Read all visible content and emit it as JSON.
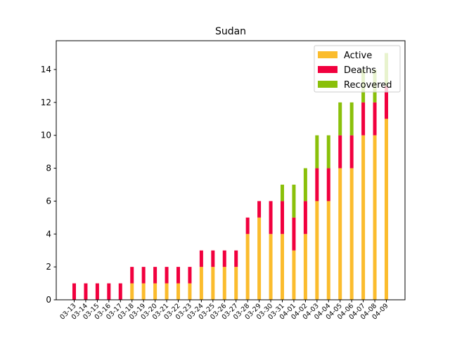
{
  "chart_data": {
    "type": "bar",
    "stacked": true,
    "title": "Sudan",
    "xlabel": "",
    "ylabel": "",
    "ylim": [
      0,
      15.75
    ],
    "yticks": [
      "0",
      "2",
      "4",
      "6",
      "8",
      "10",
      "12",
      "14"
    ],
    "grid": false,
    "legend_position": "top-right",
    "categories": [
      "03-13",
      "03-14",
      "03-15",
      "03-16",
      "03-17",
      "03-18",
      "03-19",
      "03-20",
      "03-21",
      "03-22",
      "03-23",
      "03-24",
      "03-25",
      "03-26",
      "03-27",
      "03-28",
      "03-29",
      "03-30",
      "03-31",
      "04-01",
      "04-02",
      "04-03",
      "04-04",
      "04-05",
      "04-06",
      "04-07",
      "04-08",
      "04-09"
    ],
    "series": [
      {
        "name": "Active",
        "color": "#fbbc2d",
        "values": [
          0,
          0,
          0,
          0,
          0,
          1,
          1,
          1,
          1,
          1,
          1,
          2,
          2,
          2,
          2,
          4,
          5,
          4,
          4,
          3,
          4,
          6,
          6,
          8,
          8,
          10,
          10,
          11
        ]
      },
      {
        "name": "Deaths",
        "color": "#f1003e",
        "values": [
          1,
          1,
          1,
          1,
          1,
          1,
          1,
          1,
          1,
          1,
          1,
          1,
          1,
          1,
          1,
          1,
          1,
          2,
          2,
          2,
          2,
          2,
          2,
          2,
          2,
          2,
          2,
          2
        ]
      },
      {
        "name": "Recovered",
        "color": "#8ac00a",
        "values": [
          0,
          0,
          0,
          0,
          0,
          0,
          0,
          0,
          0,
          0,
          0,
          0,
          0,
          0,
          0,
          0,
          0,
          0,
          1,
          2,
          2,
          2,
          2,
          2,
          2,
          2,
          2,
          2
        ]
      }
    ]
  }
}
